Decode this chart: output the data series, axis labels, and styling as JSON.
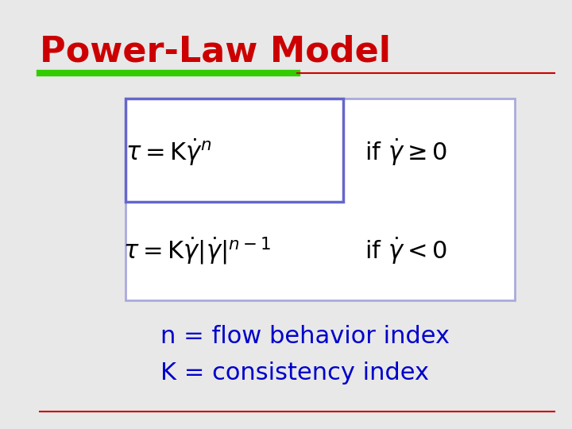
{
  "title": "Power-Law Model",
  "title_color": "#cc0000",
  "title_fontsize": 32,
  "bg_color": "#e8e8e8",
  "green_line_color": "#33cc00",
  "red_line_color": "#cc0000",
  "box_outer_color": "#6666cc",
  "box_inner_color": "#aaaadd",
  "formula1": "$\\tau = \\mathrm{K}\\dot{\\gamma}^{n}$",
  "formula2": "$\\tau = \\mathrm{K}\\dot{\\gamma}|\\dot{\\gamma}|^{n-1}$",
  "condition1": "$\\mathrm{if}\\ \\dot{\\gamma} \\geq 0$",
  "condition2": "$\\mathrm{if}\\ \\dot{\\gamma} < 0$",
  "label1": "n = flow behavior index",
  "label2": "K = consistency index",
  "label_color": "#0000cc",
  "formula_fontsize": 22,
  "condition_fontsize": 22,
  "label_fontsize": 22
}
